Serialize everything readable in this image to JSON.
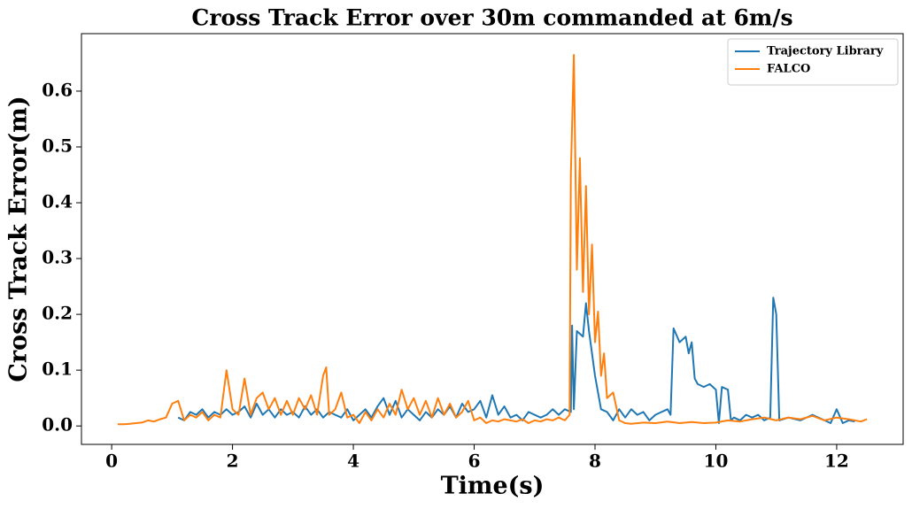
{
  "chart_data": {
    "type": "line",
    "title": "Cross Track Error over 30m commanded at 6m/s",
    "x_label": "Time(s)",
    "y_label": "Cross Track Error(m)",
    "xlim": [
      -0.5,
      13.1
    ],
    "ylim": [
      -0.033,
      0.703
    ],
    "xticks": [
      0,
      2,
      4,
      6,
      8,
      10,
      12
    ],
    "yticks": [
      {
        "value": 0,
        "label": "0.0"
      },
      0.1,
      0.2,
      0.3,
      0.4,
      0.5,
      0.6
    ],
    "legend": "upper right",
    "series": [
      {
        "name": "Trajectory Library",
        "color": "#1f77b4",
        "x": [
          1.1,
          1.2,
          1.3,
          1.4,
          1.5,
          1.6,
          1.7,
          1.8,
          1.9,
          2.0,
          2.1,
          2.2,
          2.3,
          2.4,
          2.5,
          2.6,
          2.7,
          2.8,
          2.9,
          3.0,
          3.1,
          3.2,
          3.3,
          3.4,
          3.5,
          3.6,
          3.7,
          3.8,
          3.9,
          4.0,
          4.1,
          4.2,
          4.3,
          4.4,
          4.5,
          4.6,
          4.7,
          4.8,
          4.9,
          5.0,
          5.1,
          5.2,
          5.3,
          5.4,
          5.5,
          5.6,
          5.7,
          5.8,
          5.9,
          6.0,
          6.1,
          6.2,
          6.3,
          6.4,
          6.5,
          6.6,
          6.7,
          6.8,
          6.9,
          7.0,
          7.1,
          7.2,
          7.3,
          7.4,
          7.5,
          7.6,
          7.62,
          7.65,
          7.7,
          7.8,
          7.85,
          7.9,
          8.0,
          8.1,
          8.2,
          8.3,
          8.4,
          8.5,
          8.6,
          8.7,
          8.8,
          8.9,
          9.0,
          9.1,
          9.2,
          9.25,
          9.3,
          9.4,
          9.5,
          9.55,
          9.6,
          9.65,
          9.7,
          9.8,
          9.9,
          10.0,
          10.05,
          10.1,
          10.2,
          10.25,
          10.3,
          10.4,
          10.5,
          10.6,
          10.7,
          10.8,
          10.9,
          10.95,
          11.0,
          11.05,
          11.2,
          11.4,
          11.6,
          11.8,
          11.9,
          12.0,
          12.1,
          12.2,
          12.3
        ],
        "values": [
          0.015,
          0.01,
          0.025,
          0.02,
          0.03,
          0.015,
          0.025,
          0.02,
          0.03,
          0.02,
          0.025,
          0.035,
          0.015,
          0.04,
          0.02,
          0.03,
          0.015,
          0.03,
          0.02,
          0.025,
          0.015,
          0.035,
          0.02,
          0.03,
          0.015,
          0.025,
          0.02,
          0.015,
          0.03,
          0.01,
          0.02,
          0.03,
          0.015,
          0.035,
          0.05,
          0.02,
          0.045,
          0.015,
          0.03,
          0.02,
          0.01,
          0.025,
          0.015,
          0.03,
          0.02,
          0.035,
          0.015,
          0.04,
          0.025,
          0.03,
          0.045,
          0.015,
          0.055,
          0.02,
          0.035,
          0.015,
          0.02,
          0.01,
          0.025,
          0.02,
          0.015,
          0.02,
          0.03,
          0.02,
          0.03,
          0.025,
          0.18,
          0.03,
          0.17,
          0.16,
          0.22,
          0.17,
          0.09,
          0.03,
          0.025,
          0.01,
          0.03,
          0.015,
          0.03,
          0.02,
          0.025,
          0.01,
          0.02,
          0.025,
          0.03,
          0.02,
          0.175,
          0.15,
          0.16,
          0.13,
          0.15,
          0.085,
          0.075,
          0.07,
          0.075,
          0.065,
          0.005,
          0.07,
          0.065,
          0.01,
          0.015,
          0.01,
          0.02,
          0.015,
          0.02,
          0.01,
          0.015,
          0.23,
          0.2,
          0.01,
          0.015,
          0.01,
          0.02,
          0.01,
          0.005,
          0.03,
          0.005,
          0.01,
          0.008
        ]
      },
      {
        "name": "FALCO",
        "color": "#ff7f0e",
        "x": [
          0.1,
          0.2,
          0.3,
          0.4,
          0.5,
          0.6,
          0.7,
          0.8,
          0.9,
          1.0,
          1.1,
          1.2,
          1.3,
          1.4,
          1.5,
          1.6,
          1.7,
          1.8,
          1.9,
          2.0,
          2.1,
          2.2,
          2.3,
          2.4,
          2.5,
          2.6,
          2.7,
          2.8,
          2.9,
          3.0,
          3.1,
          3.2,
          3.3,
          3.4,
          3.5,
          3.55,
          3.6,
          3.7,
          3.8,
          3.9,
          4.0,
          4.1,
          4.2,
          4.3,
          4.4,
          4.5,
          4.6,
          4.7,
          4.8,
          4.9,
          5.0,
          5.1,
          5.2,
          5.3,
          5.4,
          5.5,
          5.6,
          5.7,
          5.8,
          5.9,
          6.0,
          6.1,
          6.2,
          6.3,
          6.4,
          6.5,
          6.6,
          6.7,
          6.8,
          6.9,
          7.0,
          7.1,
          7.2,
          7.3,
          7.4,
          7.5,
          7.58,
          7.6,
          7.65,
          7.7,
          7.75,
          7.8,
          7.85,
          7.9,
          7.95,
          8.0,
          8.05,
          8.1,
          8.15,
          8.2,
          8.3,
          8.4,
          8.5,
          8.6,
          8.8,
          9.0,
          9.2,
          9.4,
          9.6,
          9.8,
          10.0,
          10.2,
          10.4,
          10.6,
          10.8,
          11.0,
          11.2,
          11.4,
          11.6,
          11.8,
          12.0,
          12.2,
          12.4,
          12.5
        ],
        "values": [
          0.003,
          0.003,
          0.004,
          0.005,
          0.006,
          0.01,
          0.008,
          0.012,
          0.015,
          0.04,
          0.045,
          0.01,
          0.02,
          0.015,
          0.025,
          0.01,
          0.02,
          0.015,
          0.1,
          0.03,
          0.02,
          0.085,
          0.02,
          0.05,
          0.06,
          0.03,
          0.05,
          0.02,
          0.045,
          0.02,
          0.05,
          0.03,
          0.055,
          0.02,
          0.09,
          0.105,
          0.02,
          0.03,
          0.06,
          0.015,
          0.02,
          0.005,
          0.025,
          0.01,
          0.03,
          0.015,
          0.04,
          0.02,
          0.065,
          0.03,
          0.05,
          0.02,
          0.045,
          0.015,
          0.05,
          0.02,
          0.04,
          0.015,
          0.025,
          0.045,
          0.01,
          0.015,
          0.005,
          0.01,
          0.008,
          0.012,
          0.01,
          0.008,
          0.012,
          0.005,
          0.01,
          0.008,
          0.012,
          0.01,
          0.015,
          0.01,
          0.02,
          0.45,
          0.665,
          0.28,
          0.48,
          0.24,
          0.43,
          0.2,
          0.325,
          0.15,
          0.205,
          0.09,
          0.13,
          0.05,
          0.06,
          0.01,
          0.005,
          0.004,
          0.006,
          0.005,
          0.008,
          0.005,
          0.007,
          0.005,
          0.006,
          0.01,
          0.008,
          0.012,
          0.015,
          0.01,
          0.015,
          0.012,
          0.018,
          0.01,
          0.015,
          0.012,
          0.008,
          0.012
        ]
      }
    ]
  }
}
